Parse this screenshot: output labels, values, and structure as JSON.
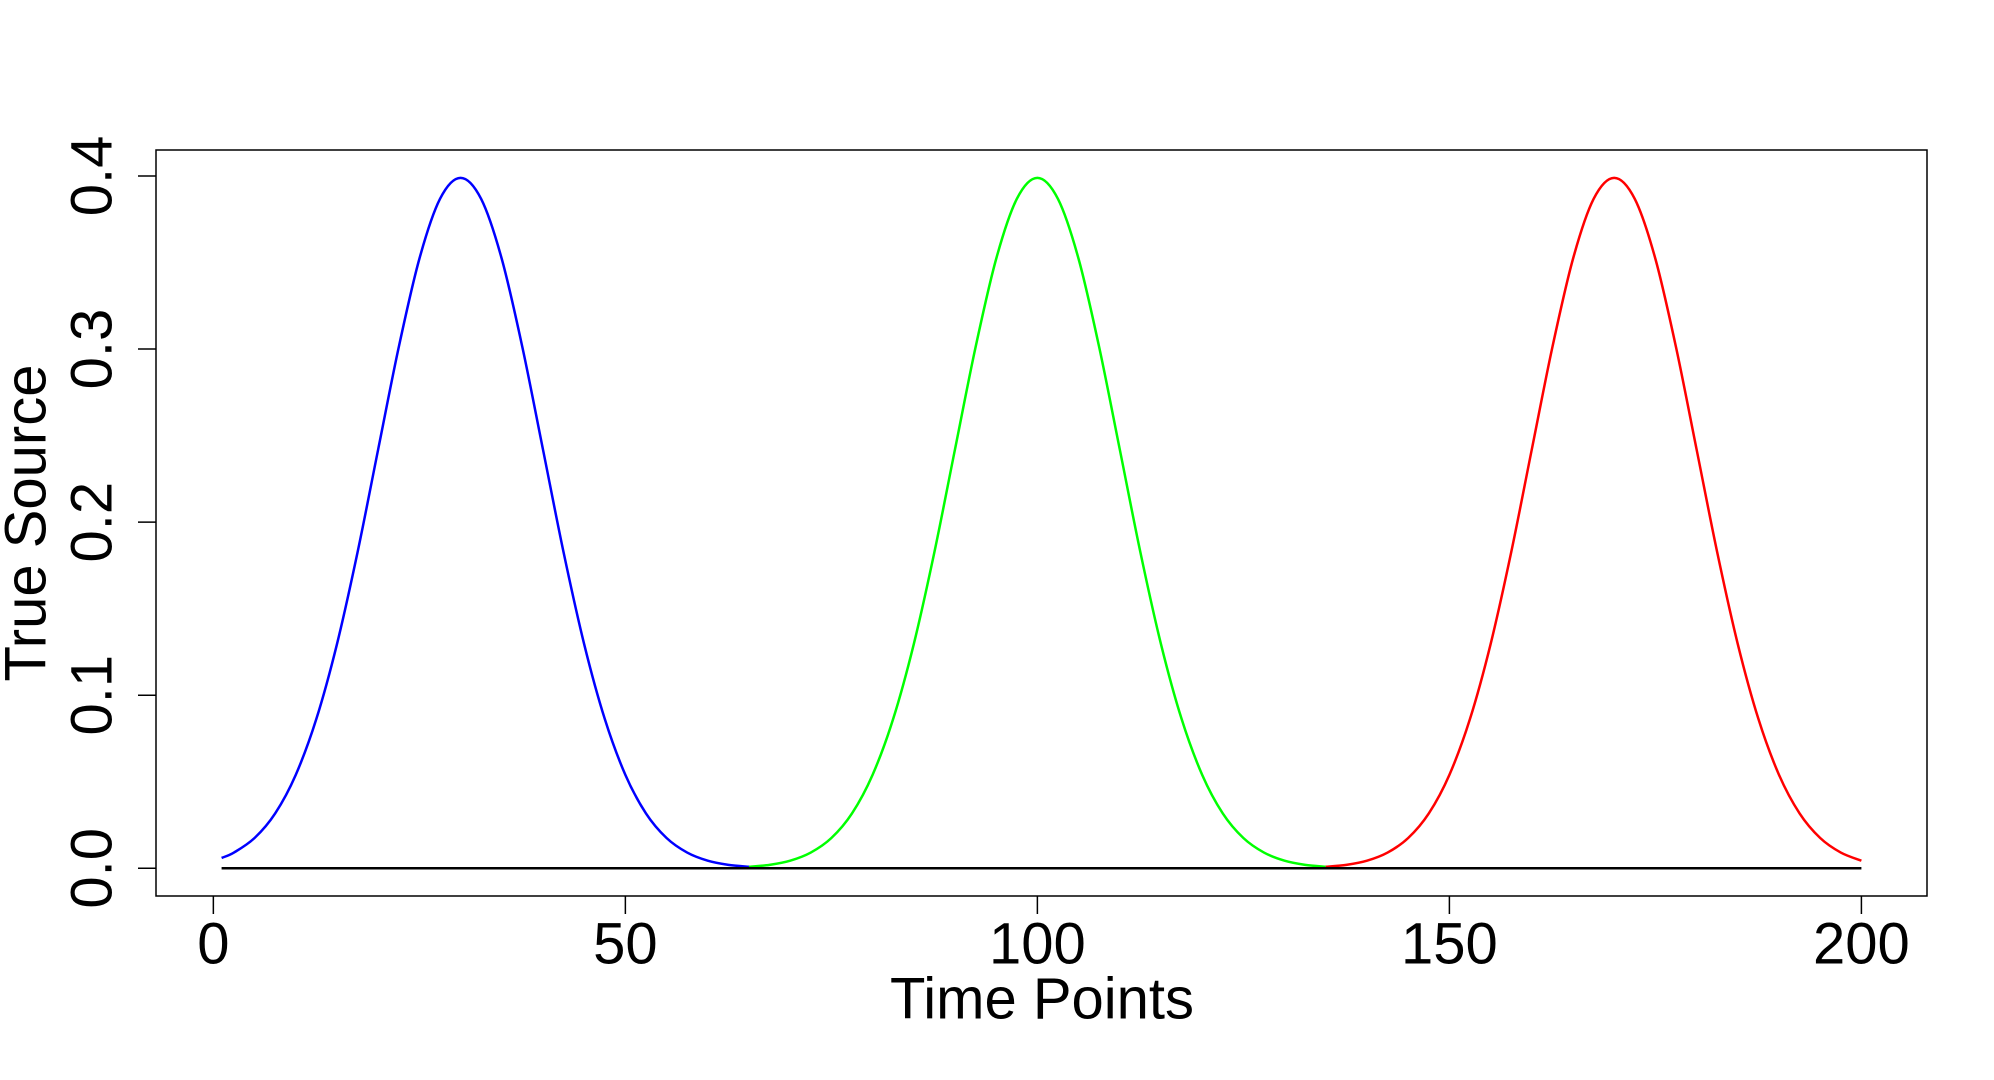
{
  "chart_data": {
    "type": "line",
    "xlabel": "Time Points",
    "ylabel": "True Source",
    "x": [
      1,
      2.5,
      5,
      7.5,
      10,
      12.5,
      15,
      17.5,
      20,
      22.5,
      25,
      27.5,
      30,
      32.5,
      35,
      37.5,
      40,
      42.5,
      45,
      47.5,
      50,
      52.5,
      55,
      57.5,
      60,
      62.5,
      65,
      67.5,
      70,
      72.5,
      75,
      77.5,
      80,
      82.5,
      85,
      87.5,
      90,
      92.5,
      95,
      97.5,
      100,
      102.5,
      105,
      107.5,
      110,
      112.5,
      115,
      117.5,
      120,
      122.5,
      125,
      127.5,
      130,
      132.5,
      135,
      137.5,
      140,
      142.5,
      145,
      147.5,
      150,
      152.5,
      155,
      157.5,
      160,
      162.5,
      165,
      167.5,
      170,
      172.5,
      175,
      177.5,
      180,
      182.5,
      185,
      187.5,
      190,
      192.5,
      195,
      197.5,
      200
    ],
    "series": [
      {
        "color": "#0000ff",
        "values": [
          0.006,
          0.0091,
          0.0175,
          0.0317,
          0.054,
          0.0863,
          0.1295,
          0.1826,
          0.242,
          0.3011,
          0.3521,
          0.3867,
          0.3989,
          0.3867,
          0.3521,
          0.3011,
          0.242,
          0.1826,
          0.1295,
          0.0863,
          0.054,
          0.0317,
          0.0175,
          0.0091,
          0.0044,
          0.002,
          0.0009,
          null,
          null,
          null,
          null,
          null,
          null,
          null,
          null,
          null,
          null,
          null,
          null,
          null,
          null,
          null,
          null,
          null,
          null,
          null,
          null,
          null,
          null,
          null,
          null,
          null,
          null,
          null,
          null,
          null,
          null,
          null,
          null,
          null,
          null,
          null,
          null,
          null,
          null,
          null,
          null,
          null,
          null,
          null,
          null,
          null,
          null,
          null,
          null,
          null,
          null,
          null,
          null,
          null,
          null
        ]
      },
      {
        "color": "#00ff00",
        "values": [
          null,
          null,
          null,
          null,
          null,
          null,
          null,
          null,
          null,
          null,
          null,
          null,
          null,
          null,
          null,
          null,
          null,
          null,
          null,
          null,
          null,
          null,
          null,
          null,
          null,
          null,
          0.0009,
          0.002,
          0.0044,
          0.0091,
          0.0175,
          0.0317,
          0.054,
          0.0863,
          0.1295,
          0.1826,
          0.242,
          0.3011,
          0.3521,
          0.3867,
          0.3989,
          0.3867,
          0.3521,
          0.3011,
          0.242,
          0.1826,
          0.1295,
          0.0863,
          0.054,
          0.0317,
          0.0175,
          0.0091,
          0.0044,
          0.002,
          0.0009,
          null,
          null,
          null,
          null,
          null,
          null,
          null,
          null,
          null,
          null,
          null,
          null,
          null,
          null,
          null,
          null,
          null,
          null,
          null,
          null,
          null,
          null,
          null,
          null,
          null,
          null
        ]
      },
      {
        "color": "#ff0000",
        "values": [
          null,
          null,
          null,
          null,
          null,
          null,
          null,
          null,
          null,
          null,
          null,
          null,
          null,
          null,
          null,
          null,
          null,
          null,
          null,
          null,
          null,
          null,
          null,
          null,
          null,
          null,
          null,
          null,
          null,
          null,
          null,
          null,
          null,
          null,
          null,
          null,
          null,
          null,
          null,
          null,
          null,
          null,
          null,
          null,
          null,
          null,
          null,
          null,
          null,
          null,
          null,
          null,
          null,
          null,
          0.0009,
          0.002,
          0.0044,
          0.0091,
          0.0175,
          0.0317,
          0.054,
          0.0863,
          0.1295,
          0.1826,
          0.242,
          0.3011,
          0.3521,
          0.3867,
          0.3989,
          0.3867,
          0.3521,
          0.3011,
          0.242,
          0.1826,
          0.1295,
          0.0863,
          0.054,
          0.0317,
          0.0175,
          0.0091,
          0.0044
        ]
      },
      {
        "color": "#000000",
        "values": [
          0,
          0,
          0,
          0,
          0,
          0,
          0,
          0,
          0,
          0,
          0,
          0,
          0,
          0,
          0,
          0,
          0,
          0,
          0,
          0,
          0,
          0,
          0,
          0,
          0,
          0,
          0,
          0,
          0,
          0,
          0,
          0,
          0,
          0,
          0,
          0,
          0,
          0,
          0,
          0,
          0,
          0,
          0,
          0,
          0,
          0,
          0,
          0,
          0,
          0,
          0,
          0,
          0,
          0,
          0,
          0,
          0,
          0,
          0,
          0,
          0,
          0,
          0,
          0,
          0,
          0,
          0,
          0,
          0,
          0,
          0,
          0,
          0,
          0,
          0,
          0,
          0,
          0,
          0,
          0,
          0
        ]
      }
    ],
    "xlim": [
      -6.96,
      207.96
    ],
    "xticks": [
      0,
      50,
      100,
      150,
      200
    ],
    "ylim": [
      -0.016,
      0.415
    ],
    "yticks": [
      {
        "value": 0,
        "label": "0.0"
      },
      0.1,
      0.2,
      0.3,
      0.4
    ]
  }
}
